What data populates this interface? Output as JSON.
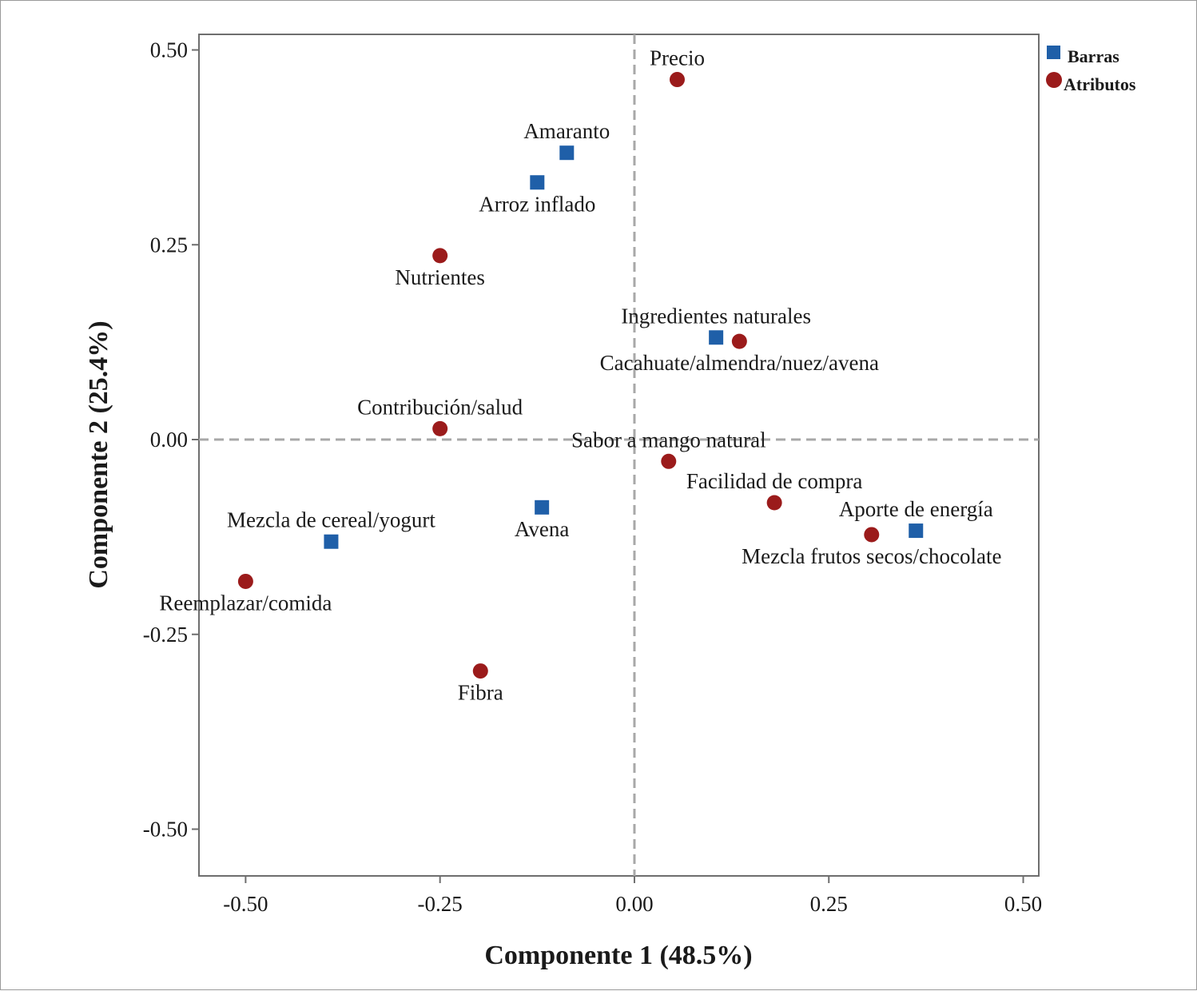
{
  "chart_data": {
    "type": "scatter",
    "xlabel": "Componente 1 (48.5%)",
    "ylabel": "Componente 2 (25.4%)",
    "xlim": [
      -0.56,
      0.52
    ],
    "ylim": [
      -0.56,
      0.52
    ],
    "x_ticks": [
      -0.5,
      -0.25,
      0.0,
      0.25,
      0.5
    ],
    "y_ticks": [
      0.5,
      0.25,
      0.0,
      -0.25,
      -0.5
    ],
    "x_tick_labels": [
      "-0.50",
      "-0.25",
      "0.00",
      "0.25",
      "0.50"
    ],
    "y_tick_labels": [
      "0.50",
      "0.25",
      "0.00",
      "-0.25",
      "-0.50"
    ],
    "reference_lines": {
      "x": 0.0,
      "y": 0.0,
      "style": "dashed"
    },
    "legend_position": "top-right, outside plot",
    "series": [
      {
        "name": "Barras",
        "marker": "square",
        "color": "#1f5fa8",
        "points": [
          {
            "label": "Amaranto",
            "x": -0.087,
            "y": 0.368,
            "label_pos": "above"
          },
          {
            "label": "Arroz inflado",
            "x": -0.125,
            "y": 0.33,
            "label_pos": "below"
          },
          {
            "label": "Ingredientes naturales",
            "x": 0.105,
            "y": 0.131,
            "label_pos": "above"
          },
          {
            "label": "Mezcla de cereal/yogurt",
            "x": -0.39,
            "y": -0.131,
            "label_pos": "above"
          },
          {
            "label": "Avena",
            "x": -0.119,
            "y": -0.087,
            "label_pos": "below"
          },
          {
            "label": "Aporte de energía",
            "x": 0.362,
            "y": -0.117,
            "label_pos": "above"
          }
        ]
      },
      {
        "name": "Atributos",
        "marker": "circle",
        "color": "#9b1b1b",
        "points": [
          {
            "label": "Precio",
            "x": 0.055,
            "y": 0.462,
            "label_pos": "above"
          },
          {
            "label": "Nutrientes",
            "x": -0.25,
            "y": 0.236,
            "label_pos": "below"
          },
          {
            "label": "Cacahuate/almendra/nuez/avena",
            "x": 0.135,
            "y": 0.126,
            "label_pos": "below"
          },
          {
            "label": "Contribución/salud",
            "x": -0.25,
            "y": 0.014,
            "label_pos": "above"
          },
          {
            "label": "Sabor a mango natural",
            "x": 0.044,
            "y": -0.028,
            "label_pos": "above"
          },
          {
            "label": "Facilidad de compra",
            "x": 0.18,
            "y": -0.081,
            "label_pos": "above"
          },
          {
            "label": "Mezcla frutos secos/chocolate",
            "x": 0.305,
            "y": -0.122,
            "label_pos": "below"
          },
          {
            "label": "Reemplazar/comida",
            "x": -0.5,
            "y": -0.182,
            "label_pos": "below"
          },
          {
            "label": "Fibra",
            "x": -0.198,
            "y": -0.297,
            "label_pos": "below"
          }
        ]
      }
    ]
  }
}
